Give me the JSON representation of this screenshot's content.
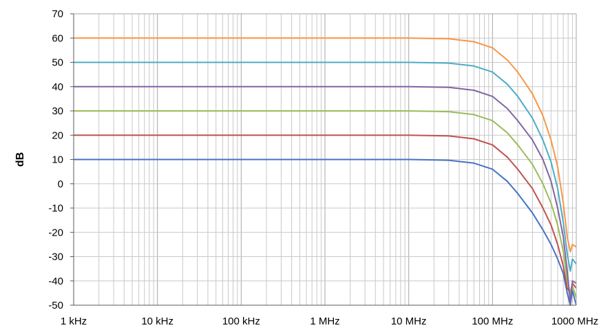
{
  "chart_data": {
    "type": "line",
    "title": "",
    "xlabel": "",
    "ylabel": "dB",
    "x_scale": "log",
    "xlim_hz": [
      1000,
      1000000000
    ],
    "ylim": [
      -50,
      70
    ],
    "y_ticks": [
      70,
      60,
      50,
      40,
      30,
      20,
      10,
      0,
      -10,
      -20,
      -30,
      -40,
      -50
    ],
    "x_ticks": [
      {
        "value_hz": 1000,
        "label": "1 kHz"
      },
      {
        "value_hz": 10000,
        "label": "10 kHz"
      },
      {
        "value_hz": 100000,
        "label": "100 kHz"
      },
      {
        "value_hz": 1000000,
        "label": "1 MHz"
      },
      {
        "value_hz": 10000000,
        "label": "10 MHz"
      },
      {
        "value_hz": 100000000,
        "label": "100 MHz"
      },
      {
        "value_hz": 1000000000,
        "label": "1000 MHz"
      }
    ],
    "grid": true,
    "legend": "none",
    "series": [
      {
        "color": "#4472c4",
        "x_hz": [
          1000,
          10000000,
          30000000,
          60000000,
          100000000,
          150000000,
          200000000,
          300000000,
          400000000,
          500000000,
          600000000,
          700000000,
          780000000,
          850000000,
          900000000,
          1000000000
        ],
        "y": [
          10,
          10,
          9.7,
          8.5,
          6,
          1,
          -4,
          -12,
          -19,
          -25,
          -31,
          -37,
          -45,
          -50,
          -44,
          -50
        ]
      },
      {
        "color": "#c0504d",
        "x_hz": [
          1000,
          10000000,
          30000000,
          60000000,
          100000000,
          150000000,
          200000000,
          300000000,
          400000000,
          500000000,
          600000000,
          700000000,
          780000000,
          850000000,
          900000000,
          1000000000
        ],
        "y": [
          20,
          20,
          19.7,
          18.5,
          16,
          11,
          6,
          -2,
          -10,
          -17,
          -25,
          -34,
          -43,
          -45,
          -41,
          -43
        ]
      },
      {
        "color": "#9bbb59",
        "x_hz": [
          1000,
          10000000,
          30000000,
          60000000,
          100000000,
          150000000,
          200000000,
          300000000,
          400000000,
          500000000,
          600000000,
          700000000,
          780000000,
          850000000,
          900000000,
          1000000000
        ],
        "y": [
          30,
          30,
          29.7,
          28.5,
          26,
          21,
          16,
          8,
          0,
          -8,
          -17,
          -28,
          -40,
          -45,
          -42,
          -47
        ]
      },
      {
        "color": "#8064a2",
        "x_hz": [
          1000,
          10000000,
          30000000,
          60000000,
          100000000,
          150000000,
          200000000,
          300000000,
          400000000,
          500000000,
          600000000,
          700000000,
          780000000,
          850000000,
          900000000,
          1000000000
        ],
        "y": [
          40,
          40,
          39.7,
          38.5,
          36,
          31,
          26,
          18,
          10,
          1,
          -10,
          -22,
          -36,
          -49,
          -40,
          -41
        ]
      },
      {
        "color": "#4bacc6",
        "x_hz": [
          1000,
          10000000,
          30000000,
          60000000,
          100000000,
          150000000,
          200000000,
          300000000,
          400000000,
          500000000,
          600000000,
          700000000,
          780000000,
          850000000,
          900000000,
          1000000000
        ],
        "y": [
          50,
          50,
          49.7,
          48.5,
          46,
          41,
          36,
          27,
          18,
          9,
          -2,
          -16,
          -29,
          -36,
          -31,
          -33
        ]
      },
      {
        "color": "#f79646",
        "x_hz": [
          1000,
          10000000,
          30000000,
          60000000,
          100000000,
          150000000,
          200000000,
          300000000,
          400000000,
          500000000,
          600000000,
          700000000,
          780000000,
          850000000,
          900000000,
          1000000000
        ],
        "y": [
          60,
          60,
          59.7,
          58.5,
          56,
          51,
          46,
          37,
          28,
          18,
          7,
          -8,
          -22,
          -28,
          -25,
          -26
        ]
      }
    ]
  }
}
